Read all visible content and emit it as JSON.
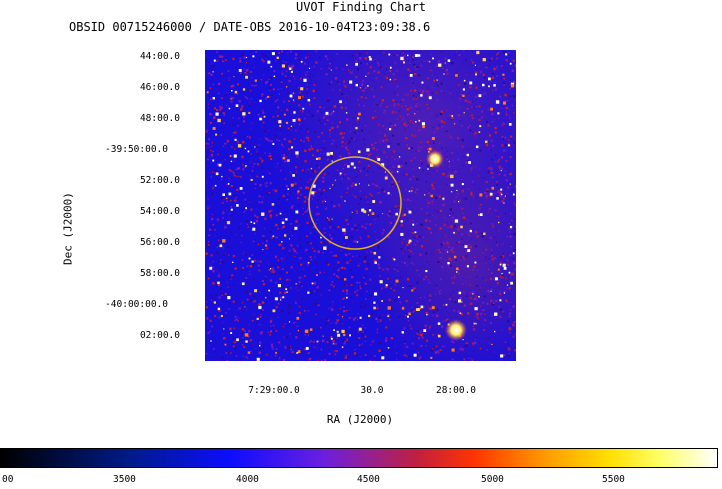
{
  "header": {
    "title": "UVOT Finding Chart",
    "subtitle": "OBSID 00715246000 / DATE-OBS 2016-10-04T23:09:38.6"
  },
  "axes": {
    "dec_label": "Dec (J2000)",
    "ra_label": "RA (J2000)",
    "dec_ticks": [
      "44:00.0",
      "46:00.0",
      "48:00.0",
      "-39:50:00.0",
      "52:00.0",
      "54:00.0",
      "56:00.0",
      "58:00.0",
      "-40:00:00.0",
      "02:00.0"
    ],
    "ra_ticks": [
      "7:29:00.0",
      "30.0",
      "28:00.0"
    ]
  },
  "colorbar": {
    "ticks": [
      "00",
      "3500",
      "4000",
      "4500",
      "5000",
      "5500"
    ]
  },
  "colors": {
    "field_background": "#1a0fd8",
    "region_circle": "#e8b020"
  }
}
